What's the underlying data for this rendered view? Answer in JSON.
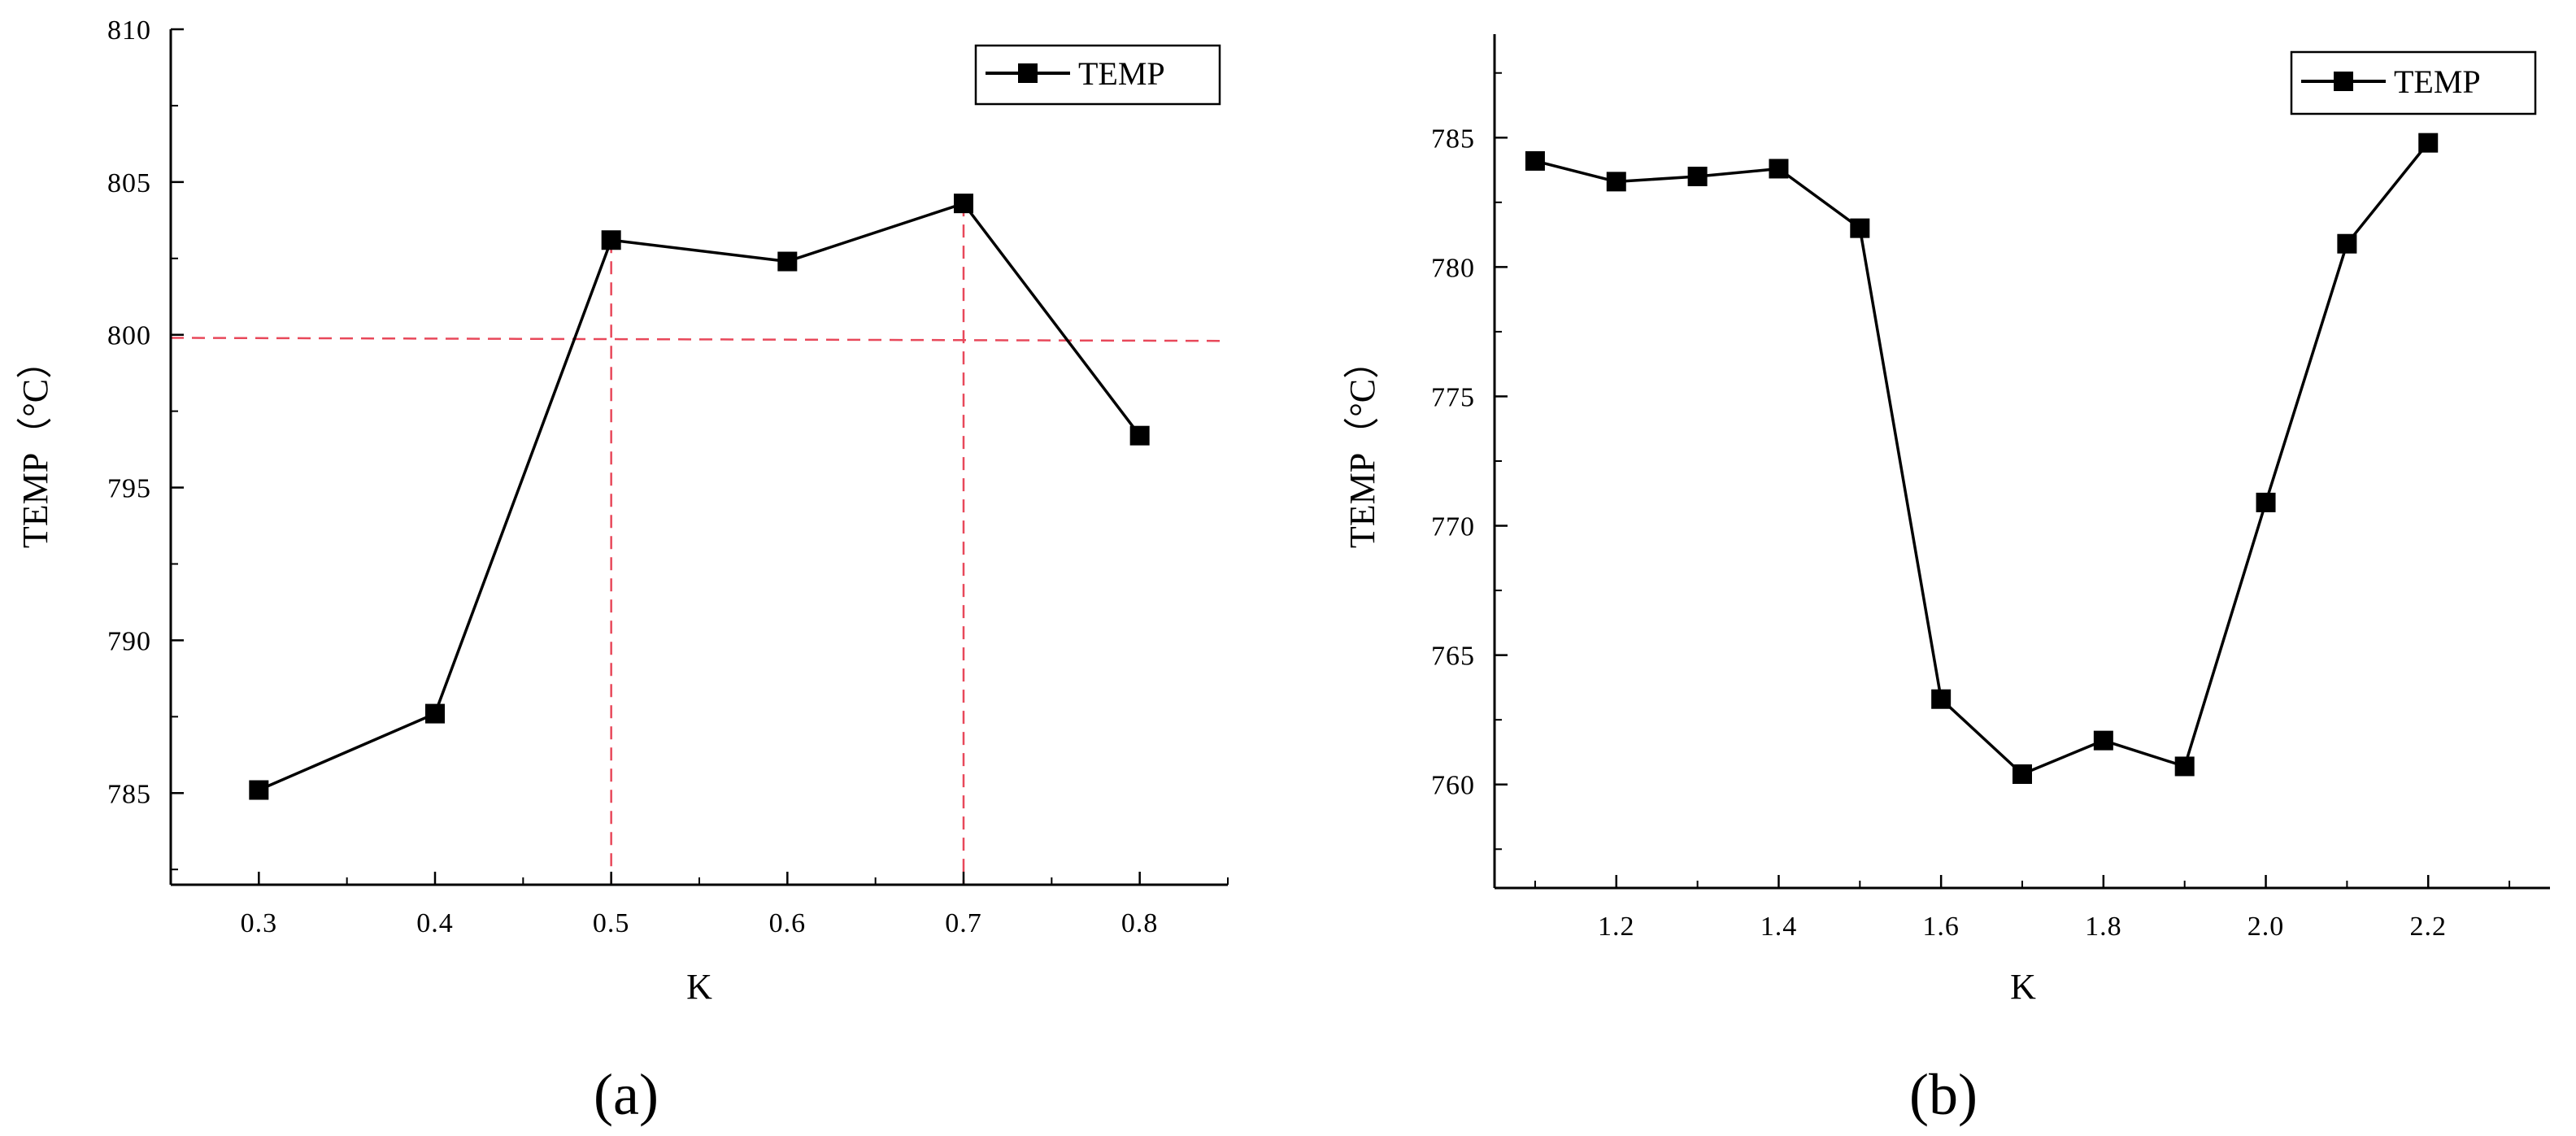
{
  "chart_data": [
    {
      "type": "line",
      "panel_label": "(a)",
      "xlabel": "K",
      "ylabel": "TEMP（°C）",
      "legend": "TEMP",
      "legend_position": "top-right",
      "x": [
        0.3,
        0.4,
        0.5,
        0.6,
        0.7,
        0.8
      ],
      "x_tick_labels": [
        "0.3",
        "0.4",
        "0.5",
        "0.6",
        "0.7",
        "0.8"
      ],
      "y": [
        785.1,
        787.6,
        803.1,
        802.4,
        804.3,
        796.7
      ],
      "y_tick_labels": [
        "785",
        "790",
        "795",
        "800",
        "805",
        "810"
      ],
      "xlim": [
        0.25,
        0.85
      ],
      "ylim": [
        782,
        810
      ],
      "reference_lines": {
        "color": "#e8485a",
        "horizontal_y": [
          799.9,
          799.8
        ],
        "vertical_x": [
          0.5,
          0.7
        ]
      }
    },
    {
      "type": "line",
      "panel_label": "(b)",
      "xlabel": "K",
      "ylabel": "TEMP（°C）",
      "legend": "TEMP",
      "legend_position": "top-right",
      "x": [
        1.1,
        1.2,
        1.3,
        1.4,
        1.5,
        1.6,
        1.7,
        1.8,
        1.9,
        2.0,
        2.1,
        2.2
      ],
      "x_tick_labels": [
        "1.2",
        "1.4",
        "1.6",
        "1.8",
        "2.0",
        "2.2"
      ],
      "y": [
        784.1,
        783.3,
        783.5,
        783.8,
        781.5,
        763.3,
        760.4,
        761.7,
        760.7,
        770.9,
        780.9,
        784.8
      ],
      "y_tick_labels": [
        "760",
        "765",
        "770",
        "775",
        "780",
        "785"
      ],
      "xlim": [
        1.05,
        2.35
      ],
      "ylim": [
        756,
        789
      ]
    }
  ]
}
